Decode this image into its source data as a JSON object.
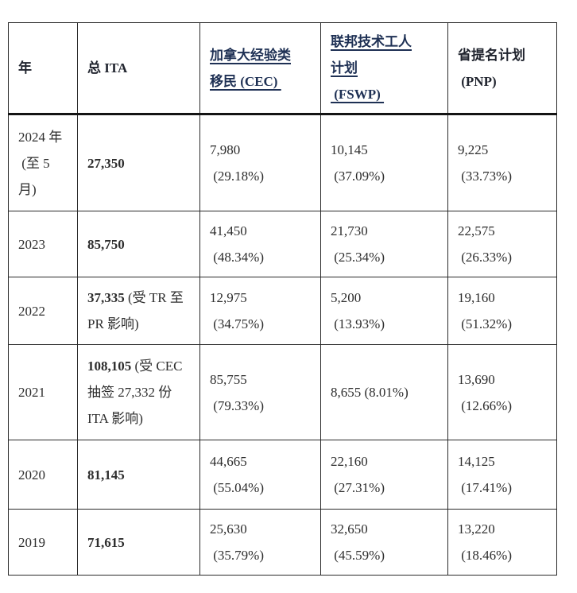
{
  "table": {
    "columns": [
      {
        "key": "year",
        "label": "年",
        "link": false
      },
      {
        "key": "total-ita",
        "label": "总 ITA",
        "link": false
      },
      {
        "key": "cec",
        "label": "加拿大经验类\n移民 (CEC) ",
        "link": true
      },
      {
        "key": "fswp",
        "label": "联邦技术工人\n计划\n (FSWP) ",
        "link": true
      },
      {
        "key": "pnp",
        "label": "省提名计划\n (PNP)",
        "link": false
      }
    ],
    "rows": [
      {
        "year": "2024 年\n (至 5\n月)",
        "total": "27,350",
        "total_note": "",
        "cec": "7,980\n (29.18%)",
        "fswp": "10,145\n (37.09%)",
        "pnp": "9,225\n (33.73%)"
      },
      {
        "year": "2023",
        "total": "85,750",
        "total_note": "",
        "cec": "41,450\n (48.34%)",
        "fswp": "21,730\n (25.34%)",
        "pnp": "22,575\n (26.33%)"
      },
      {
        "year": "2022",
        "total": "37,335",
        "total_note": " (受 TR 至 PR 影响)",
        "cec": "12,975\n (34.75%)",
        "fswp": "5,200\n (13.93%)",
        "pnp": "19,160\n (51.32%)"
      },
      {
        "year": "2021",
        "total": "108,105",
        "total_note": " (受 CEC 抽签 27,332 份 ITA 影响)",
        "cec": "85,755\n (79.33%)",
        "fswp": "8,655 (8.01%)",
        "pnp": "13,690\n (12.66%)"
      },
      {
        "year": "2020",
        "total": "81,145",
        "total_note": "",
        "cec": "44,665\n (55.04%)",
        "fswp": "22,160\n (27.31%)",
        "pnp": "14,125\n (17.41%)"
      },
      {
        "year": "2019",
        "total": "71,615",
        "total_note": "",
        "cec": "25,630\n (35.79%)",
        "fswp": "32,650\n (45.59%)",
        "pnp": "13,220\n (18.46%)"
      }
    ]
  },
  "chart_data": {
    "type": "table",
    "columns": [
      "年",
      "总 ITA",
      "加拿大经验类移民（CEC）",
      "联邦技术工人计划（FSWP）",
      "省提名计划（PNP）"
    ],
    "rows": [
      [
        "2024 年（至 5 月）",
        "27,350",
        "7,980（29.18%）",
        "10,145（37.09%）",
        "9,225（33.73%）"
      ],
      [
        "2023",
        "85,750",
        "41,450（48.34%）",
        "21,730（25.34%）",
        "22,575（26.33%）"
      ],
      [
        "2022",
        "37,335 (受 TR 至 PR 影响)",
        "12,975（34.75%）",
        "5,200（13.93%）",
        "19,160（51.32%）"
      ],
      [
        "2021",
        "108,105 (受 CEC 抽签 27,332 份 ITA 影响)",
        "85,755（79.33%）",
        "8,655（8.01%）",
        "13,690（12.66%）"
      ],
      [
        "2020",
        "81,145",
        "44,665（55.04%）",
        "22,160（27.31%）",
        "14,125（17.41%）"
      ],
      [
        "2019",
        "71,615",
        "25,630（35.79%）",
        "32,650（45.59%）",
        "13,220（18.46%）"
      ]
    ]
  },
  "colors": {
    "link": "#1e3054",
    "header_text": "#20242e",
    "body_text": "#2d2d2d",
    "border": "#2a2a2a",
    "header_separator": "#141414"
  }
}
